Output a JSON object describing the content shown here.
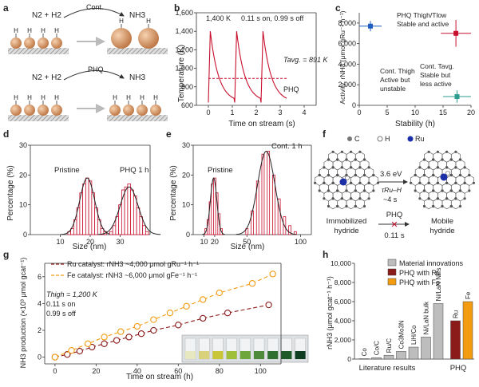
{
  "colors": {
    "red": "#c8102e",
    "darkred": "#8b1a1a",
    "blue": "#1f5fbf",
    "teal": "#2a9d8f",
    "orange": "#f39c12",
    "gray": "#9a9a9a",
    "axis": "#333333",
    "sphere": "#e0a070",
    "text": "#222222"
  },
  "panels": {
    "a": "a",
    "b": "b",
    "c": "c",
    "d": "d",
    "e": "e",
    "f": "f",
    "g": "g",
    "h": "h"
  },
  "panel_a": {
    "top_reactants": "N2 + H2",
    "top_products": "NH3",
    "top_arrow": "Cont.",
    "bottom_reactants": "N2 + H2",
    "bottom_products": "NH3",
    "bottom_arrow": "PHQ",
    "h_label": "H"
  },
  "panel_f": {
    "legend": [
      {
        "label": "C",
        "color": "#777777"
      },
      {
        "label": "H",
        "color": "#ffffff"
      },
      {
        "label": "Ru",
        "color": "#1a2fa8"
      }
    ],
    "energy": "3.6 eV",
    "tau": "τRu–H",
    "tau_value": "~4 s",
    "left_label_1": "Immobilized",
    "left_label_2": "hydride",
    "right_label_1": "Mobile",
    "right_label_2": "hydride",
    "phq": "PHQ",
    "phq_time": "0.11 s",
    "cross": "✕"
  },
  "chart_data": [
    {
      "id": "b",
      "type": "line",
      "xlabel": "Time on stream (s)",
      "ylabel": "Temperature (K)",
      "xlim": [
        -0.5,
        4.5
      ],
      "ylim": [
        600,
        1600
      ],
      "xticks": [
        0,
        1,
        2,
        3,
        4
      ],
      "yticks": [
        600,
        800,
        1000,
        1200,
        1400,
        1600
      ],
      "annotations": [
        "1,400 K",
        "0.11 s on, 0.99 s off",
        "Tavg. = 891 K",
        "PHQ"
      ],
      "avg_line": 891,
      "series": [
        {
          "name": "PHQ",
          "pulses": [
            0,
            1.1,
            2.2
          ],
          "peak": 1400,
          "base": 630,
          "x_end": 3.3
        }
      ]
    },
    {
      "id": "c",
      "type": "scatter",
      "xlabel": "Stability (h)",
      "ylabel": "Activity, rNH3 (μmol gRu⁻¹ h⁻¹)",
      "xlim": [
        0,
        20
      ],
      "ylim": [
        0,
        9000
      ],
      "xticks": [
        0,
        5,
        10,
        15,
        20
      ],
      "yticks": [
        0,
        2000,
        4000,
        6000,
        8000
      ],
      "points": [
        {
          "label_1": "Cont. Thigh",
          "label_2": "Active but",
          "label_3": "unstable",
          "x": 2,
          "y": 7700,
          "xerr": 2,
          "yerr": 500,
          "color": "#1f5fbf"
        },
        {
          "label_1": "PHQ Thigh/Tlow",
          "label_2": "Stable and active",
          "label_3": "",
          "x": 17.3,
          "y": 7000,
          "xerr": 2.7,
          "yerr": 1300,
          "color": "#c8102e"
        },
        {
          "label_1": "Cont. Tavg.",
          "label_2": "Stable but",
          "label_3": "less active",
          "x": 17.5,
          "y": 850,
          "xerr": 2.5,
          "yerr": 600,
          "color": "#2a9d8f"
        }
      ]
    },
    {
      "id": "d",
      "type": "bar",
      "xlabel": "Size (nm)",
      "ylabel": "Percentage (%)",
      "xlim": [
        0,
        40
      ],
      "ylim": [
        0,
        30
      ],
      "xticks": [
        10,
        20,
        30
      ],
      "yticks": [
        0,
        10,
        20,
        30
      ],
      "series": [
        {
          "name": "Pristine",
          "bins": [
            13,
            14,
            15,
            16,
            17,
            18,
            19,
            20,
            21,
            22,
            23,
            24,
            25
          ],
          "values": [
            1,
            2,
            5,
            9,
            14,
            17,
            19,
            18,
            14,
            9,
            5,
            2,
            1
          ],
          "fit_mu": 19,
          "fit_sigma": 2.5,
          "fit_peak": 19
        },
        {
          "name": "PHQ 1 h",
          "bins": [
            27,
            28,
            29,
            30,
            31,
            32,
            33,
            34,
            35,
            36,
            37,
            38,
            39
          ],
          "values": [
            1,
            3,
            6,
            10,
            15,
            16,
            17,
            15,
            13,
            9,
            6,
            3,
            1
          ],
          "fit_mu": 33,
          "fit_sigma": 3,
          "fit_peak": 16
        }
      ]
    },
    {
      "id": "e",
      "type": "bar",
      "xlabel": "Size (nm)",
      "ylabel": "Percentage (%)",
      "xlim": [
        0,
        110
      ],
      "ylim": [
        0,
        30
      ],
      "xticks": [
        10,
        20,
        50,
        100
      ],
      "yticks": [
        0,
        10,
        20,
        30
      ],
      "series": [
        {
          "name": "Pristine",
          "bins": [
            12,
            14,
            16,
            18,
            20,
            22,
            24,
            26
          ],
          "values": [
            2,
            5,
            11,
            17,
            19,
            14,
            7,
            2
          ],
          "fit_mu": 19,
          "fit_sigma": 3,
          "fit_peak": 19
        },
        {
          "name": "Cont. 1 h",
          "bins": [
            50,
            55,
            60,
            65,
            70,
            75,
            80,
            85,
            90,
            95
          ],
          "values": [
            2,
            8,
            18,
            27,
            28,
            20,
            12,
            6,
            3,
            1
          ],
          "fit_mu": 68,
          "fit_sigma": 8,
          "fit_peak": 28
        }
      ]
    },
    {
      "id": "g",
      "type": "line",
      "xlabel": "Time on stream (h)",
      "ylabel": "NH3 production (×10³ μmol gcat⁻¹)",
      "xlim": [
        -5,
        110
      ],
      "ylim": [
        -0.5,
        7
      ],
      "xticks": [
        0,
        20,
        40,
        60,
        80,
        100
      ],
      "yticks": [
        0,
        2,
        4,
        6
      ],
      "annotations": [
        "Thigh = 1,200 K",
        "0.11 s on",
        "0.99 s off"
      ],
      "series": [
        {
          "name": "Ru catalyst: rNH3 ~4,000 μmol gRu⁻¹ h⁻¹",
          "color": "#8b1a1a",
          "x": [
            0,
            6,
            12,
            18,
            24,
            30,
            36,
            42,
            48,
            60,
            72,
            84,
            104
          ],
          "y": [
            0,
            0.2,
            0.45,
            0.75,
            1.0,
            1.25,
            1.5,
            1.75,
            2.0,
            2.4,
            2.9,
            3.3,
            3.9
          ]
        },
        {
          "name": "Fe catalyst: rNH3 ~6,000 μmol gFe⁻¹ h⁻¹",
          "color": "#f39c12",
          "x": [
            0,
            8,
            16,
            24,
            32,
            40,
            48,
            56,
            64,
            72,
            80,
            96,
            106
          ],
          "y": [
            0,
            0.5,
            1.0,
            1.5,
            1.9,
            2.3,
            2.8,
            3.3,
            3.8,
            4.3,
            4.8,
            5.5,
            6.2
          ]
        }
      ]
    },
    {
      "id": "h",
      "type": "bar",
      "ylabel": "rNH3 (μmol gcat⁻¹ h⁻¹)",
      "ylim": [
        0,
        10000
      ],
      "yticks": [
        0,
        2000,
        4000,
        6000,
        8000,
        10000
      ],
      "group_labels": [
        "Literature results",
        "PHQ"
      ],
      "legend": [
        {
          "label": "Material innovations",
          "color": "#bdbdbd"
        },
        {
          "label": "PHQ with Ru",
          "color": "#8b1a1a"
        },
        {
          "label": "PHQ with Fe",
          "color": "#f39c12"
        }
      ],
      "categories": [
        "Co",
        "Co/C",
        "Ru/C",
        "Co3Mo3N",
        "LiH/Co",
        "Ni/LaN bulk",
        "Ni/LaN NPs",
        "Ru",
        "Fe"
      ],
      "values": [
        50,
        150,
        400,
        800,
        1250,
        2300,
        5800,
        4000,
        6000
      ],
      "colors": [
        "#bdbdbd",
        "#bdbdbd",
        "#bdbdbd",
        "#bdbdbd",
        "#bdbdbd",
        "#bdbdbd",
        "#bdbdbd",
        "#8b1a1a",
        "#f39c12"
      ]
    }
  ]
}
